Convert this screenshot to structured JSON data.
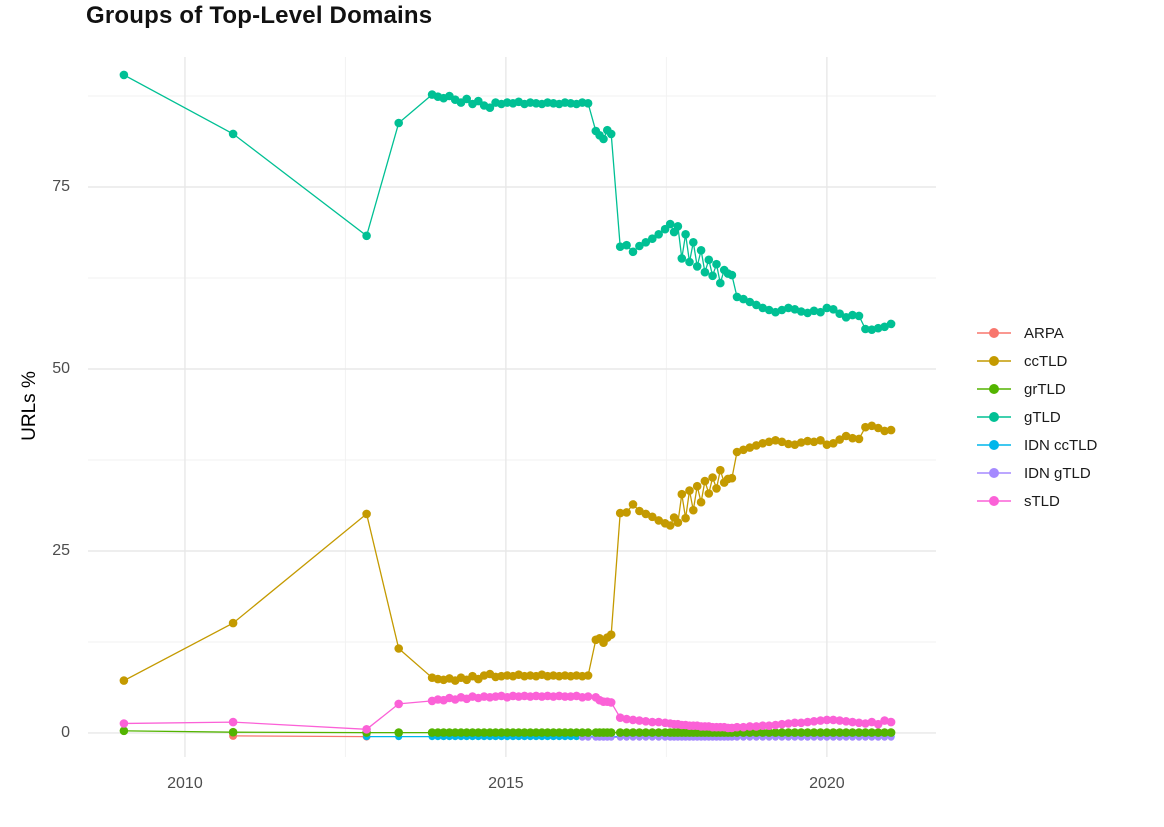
{
  "chart_data": {
    "type": "line",
    "title": "Groups of Top-Level Domains",
    "xlabel": "",
    "ylabel": "URLs %",
    "xlim": [
      2008.49,
      2021.7
    ],
    "ylim": [
      -3.3,
      92.86
    ],
    "x_major_ticks": [
      2010,
      2015,
      2020
    ],
    "x_minor_gridlines": [
      2012.5,
      2017.5
    ],
    "y_major_ticks": [
      0,
      25,
      50,
      75
    ],
    "y_minor_gridlines": [
      12.5,
      37.5,
      62.5,
      87.5
    ],
    "grid": "major+minor",
    "grid_major_color": "#e8e8e8",
    "grid_minor_color": "#f2f2f2",
    "legend_position": "right",
    "draw_order": [
      "ARPA",
      "ccTLD",
      "IDN ccTLD",
      "IDN gTLD",
      "grTLD",
      "gTLD",
      "sTLD"
    ],
    "x_main": [
      2009.05,
      2010.75,
      2012.83,
      2013.33,
      2013.85,
      2013.94,
      2014.03,
      2014.12,
      2014.21,
      2014.3,
      2014.39,
      2014.48,
      2014.57,
      2014.66,
      2014.75,
      2014.84,
      2014.93,
      2015.02,
      2015.11,
      2015.2,
      2015.29,
      2015.38,
      2015.47,
      2015.56,
      2015.65,
      2015.74,
      2015.83,
      2015.92,
      2016.01,
      2016.1,
      2016.19,
      2016.28,
      2016.4,
      2016.46,
      2016.52,
      2016.58,
      2016.64,
      2016.78,
      2016.88,
      2016.98,
      2017.08,
      2017.18,
      2017.28,
      2017.38,
      2017.48,
      2017.56,
      2017.62,
      2017.68,
      2017.74,
      2017.8,
      2017.86,
      2017.92,
      2017.98,
      2018.04,
      2018.1,
      2018.16,
      2018.22,
      2018.28,
      2018.34,
      2018.4,
      2018.46,
      2018.52,
      2018.6,
      2018.7,
      2018.8,
      2018.9,
      2019.0,
      2019.1,
      2019.2,
      2019.3,
      2019.4,
      2019.5,
      2019.6,
      2019.7,
      2019.8,
      2019.9,
      2020.0,
      2020.1,
      2020.2,
      2020.3,
      2020.4,
      2020.5,
      2020.6,
      2020.7,
      2020.8,
      2020.9,
      2021.0
    ],
    "series": [
      {
        "name": "ARPA",
        "color": "#F8766D",
        "point_radius": 4.0,
        "x": [
          2010.75,
          2012.83
        ],
        "y": [
          -0.4,
          -0.5
        ]
      },
      {
        "name": "ccTLD",
        "color": "#C49A00",
        "point_radius": 4.3,
        "x_start_index": 0,
        "y": [
          7.2,
          15.1,
          30.1,
          11.6,
          7.6,
          7.4,
          7.3,
          7.5,
          7.2,
          7.6,
          7.3,
          7.8,
          7.4,
          7.9,
          8.1,
          7.7,
          7.8,
          7.9,
          7.8,
          8.0,
          7.8,
          7.9,
          7.8,
          8.0,
          7.8,
          7.9,
          7.8,
          7.9,
          7.8,
          7.9,
          7.8,
          7.9,
          12.8,
          13.0,
          12.4,
          13.1,
          13.5,
          30.2,
          30.3,
          31.4,
          30.5,
          30.1,
          29.7,
          29.2,
          28.8,
          28.5,
          29.6,
          28.9,
          32.8,
          29.5,
          33.3,
          30.6,
          33.9,
          31.7,
          34.6,
          32.9,
          35.1,
          33.6,
          36.1,
          34.4,
          34.9,
          35.0,
          38.6,
          38.9,
          39.2,
          39.5,
          39.8,
          40.0,
          40.2,
          40.0,
          39.7,
          39.6,
          39.9,
          40.1,
          40.0,
          40.2,
          39.6,
          39.8,
          40.3,
          40.8,
          40.5,
          40.4,
          42.0,
          42.2,
          41.9,
          41.5,
          41.6
        ]
      },
      {
        "name": "grTLD",
        "color": "#53B400",
        "point_radius": 4.3,
        "x_start_index": 0,
        "y_head": [
          0.3,
          0.1
        ],
        "y_const": 0.05
      },
      {
        "name": "gTLD",
        "color": "#00C094",
        "point_radius": 4.3,
        "x_start_index": 0,
        "y": [
          90.4,
          82.3,
          68.3,
          83.8,
          87.7,
          87.4,
          87.2,
          87.5,
          87.0,
          86.6,
          87.1,
          86.4,
          86.8,
          86.2,
          85.9,
          86.6,
          86.4,
          86.6,
          86.5,
          86.7,
          86.4,
          86.6,
          86.5,
          86.4,
          86.6,
          86.5,
          86.4,
          86.6,
          86.5,
          86.4,
          86.6,
          86.5,
          82.7,
          82.1,
          81.6,
          82.8,
          82.3,
          66.8,
          67.0,
          66.1,
          66.9,
          67.4,
          67.9,
          68.5,
          69.2,
          69.9,
          68.8,
          69.6,
          65.2,
          68.5,
          64.7,
          67.4,
          64.1,
          66.3,
          63.3,
          65.0,
          62.8,
          64.4,
          61.8,
          63.6,
          63.1,
          62.9,
          59.9,
          59.6,
          59.2,
          58.8,
          58.4,
          58.1,
          57.8,
          58.1,
          58.4,
          58.2,
          57.9,
          57.7,
          58.0,
          57.8,
          58.4,
          58.2,
          57.6,
          57.1,
          57.4,
          57.3,
          55.5,
          55.4,
          55.6,
          55.8,
          56.2
        ]
      },
      {
        "name": "IDN ccTLD",
        "color": "#00B6EB",
        "point_radius": 3.6,
        "x_start_index": 2,
        "y_head": [],
        "y_const": -0.5
      },
      {
        "name": "IDN gTLD",
        "color": "#A58AFF",
        "point_radius": 3.4,
        "x_start_index": 30,
        "y_head": [],
        "y_const": -0.6
      },
      {
        "name": "sTLD",
        "color": "#FB61D7",
        "point_radius": 4.3,
        "x_start_index": 0,
        "y": [
          1.3,
          1.5,
          0.5,
          4.0,
          4.4,
          4.6,
          4.5,
          4.8,
          4.6,
          4.9,
          4.7,
          5.0,
          4.8,
          5.0,
          4.9,
          5.0,
          5.1,
          4.9,
          5.1,
          5.0,
          5.1,
          5.0,
          5.1,
          5.0,
          5.1,
          5.0,
          5.1,
          5.0,
          5.0,
          5.1,
          4.9,
          5.0,
          4.9,
          4.5,
          4.3,
          4.3,
          4.2,
          2.1,
          1.9,
          1.8,
          1.7,
          1.6,
          1.5,
          1.5,
          1.4,
          1.3,
          1.2,
          1.2,
          1.1,
          1.1,
          1.0,
          1.0,
          1.0,
          0.9,
          0.9,
          0.9,
          0.8,
          0.8,
          0.8,
          0.8,
          0.7,
          0.7,
          0.8,
          0.8,
          0.9,
          0.9,
          1.0,
          1.0,
          1.1,
          1.2,
          1.3,
          1.4,
          1.4,
          1.5,
          1.6,
          1.7,
          1.8,
          1.8,
          1.7,
          1.6,
          1.5,
          1.4,
          1.3,
          1.5,
          1.2,
          1.7,
          1.5
        ]
      }
    ]
  }
}
